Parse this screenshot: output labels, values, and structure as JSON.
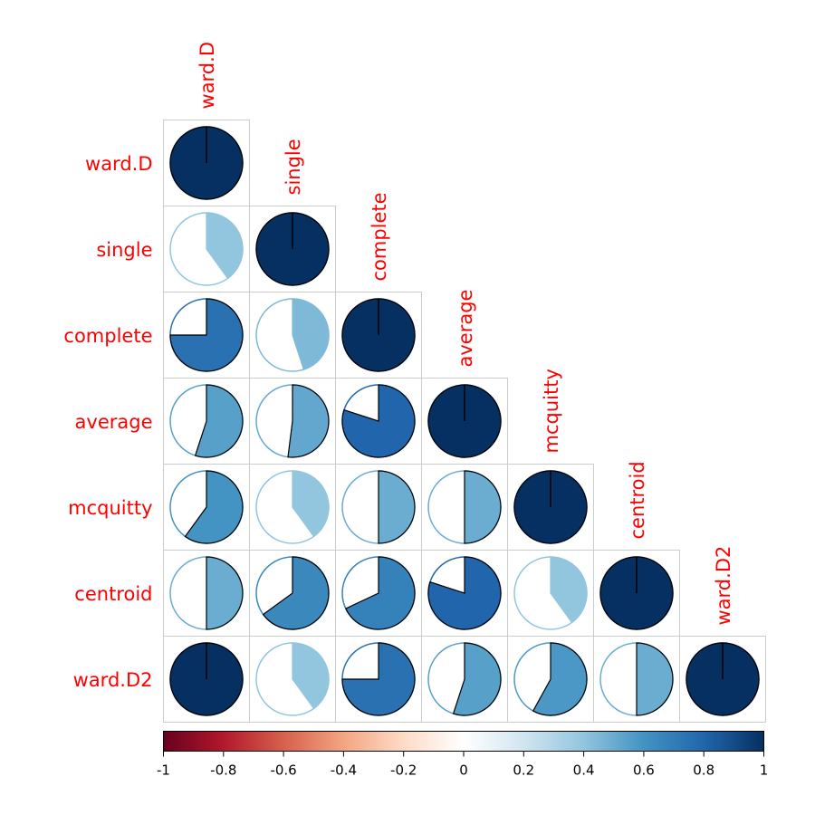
{
  "chart_data": {
    "type": "correlation-pie",
    "variables": [
      "ward.D",
      "single",
      "complete",
      "average",
      "mcquitty",
      "centroid",
      "ward.D2"
    ],
    "layout": "lower-triangle",
    "matrix": [
      [
        1.0,
        0.4,
        0.75,
        0.55,
        0.6,
        0.5,
        1.0
      ],
      [
        0.4,
        1.0,
        0.45,
        0.52,
        0.4,
        0.65,
        0.4
      ],
      [
        0.75,
        0.45,
        1.0,
        0.8,
        0.5,
        0.68,
        0.75
      ],
      [
        0.55,
        0.52,
        0.8,
        1.0,
        0.5,
        0.8,
        0.55
      ],
      [
        0.6,
        0.4,
        0.5,
        0.5,
        1.0,
        0.4,
        0.58
      ],
      [
        0.5,
        0.65,
        0.68,
        0.8,
        0.4,
        1.0,
        0.5
      ],
      [
        1.0,
        0.4,
        0.75,
        0.55,
        0.58,
        0.5,
        1.0
      ]
    ],
    "colorbar": {
      "range": [
        -1,
        1
      ],
      "ticks": [
        -1,
        -0.8,
        -0.6,
        -0.4,
        -0.2,
        0,
        0.2,
        0.4,
        0.6,
        0.8,
        1
      ],
      "tick_labels": [
        "-1",
        "-0.8",
        "-0.6",
        "-0.4",
        "-0.2",
        "0",
        "0.2",
        "0.4",
        "0.6",
        "0.8",
        "1"
      ],
      "palette": [
        "#67001F",
        "#B2182B",
        "#D6604D",
        "#F4A582",
        "#FDDBC7",
        "#FFFFFF",
        "#D1E5F0",
        "#92C5DE",
        "#4393C3",
        "#2166AC",
        "#053061"
      ]
    },
    "label_color": "#FF0000"
  }
}
